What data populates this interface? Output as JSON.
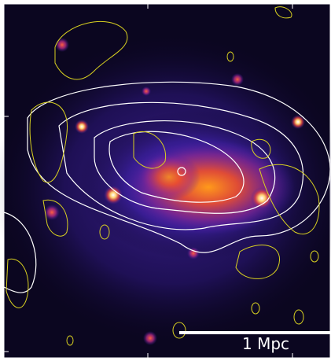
{
  "scale_bar": {
    "label": "1 Mpc"
  }
}
